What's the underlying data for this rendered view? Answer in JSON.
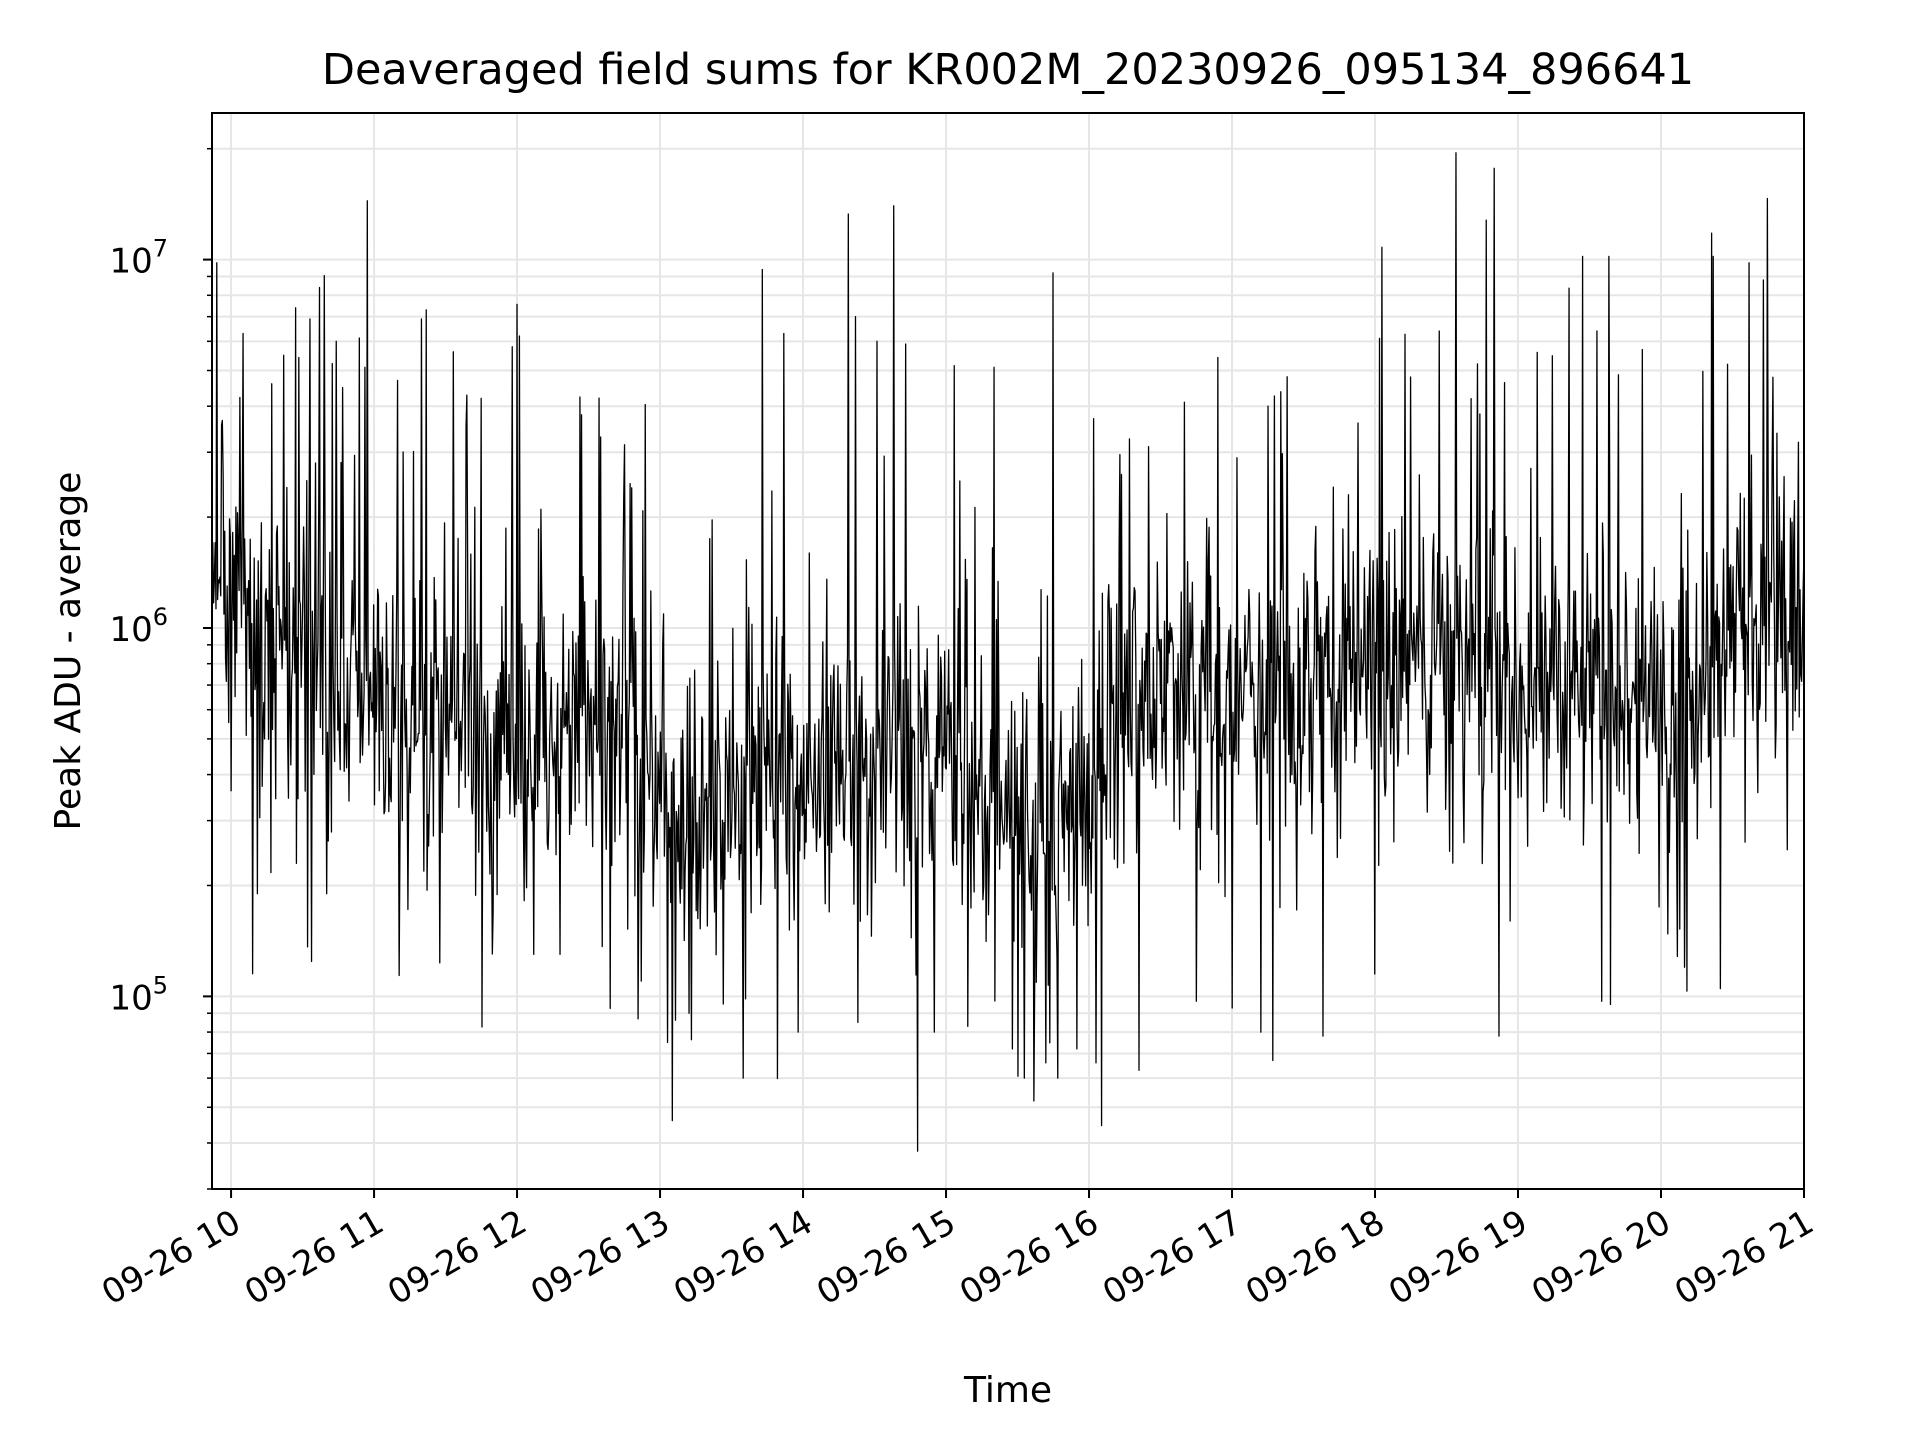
{
  "chart_data": {
    "type": "line",
    "title": "Deaveraged field sums for KR002M_20230926_095134_896641",
    "xlabel": "Time",
    "ylabel": "Peak ADU - average",
    "x_tick_labels": [
      "09-26 10",
      "09-26 11",
      "09-26 12",
      "09-26 13",
      "09-26 14",
      "09-26 15",
      "09-26 16",
      "09-26 17",
      "09-26 18",
      "09-26 19",
      "09-26 20",
      "09-26 21"
    ],
    "y_tick_labels": [
      {
        "base": "10",
        "exp": "5"
      },
      {
        "base": "10",
        "exp": "6"
      },
      {
        "base": "10",
        "exp": "7"
      }
    ],
    "y_scale": "log",
    "x_range": [
      "2023-09-26 09:52",
      "2023-09-26 21:00"
    ],
    "y_range": [
      30000,
      25000000
    ],
    "grid": true,
    "line_color": "#000000",
    "grid_color": "#e6e6e6",
    "series": [
      {
        "name": "",
        "start_time": "2023-09-26 09:52",
        "anchors": [
          [
            "09:52",
            1500000
          ],
          [
            "10:15",
            900000
          ],
          [
            "10:40",
            750000
          ],
          [
            "11:00",
            650000
          ],
          [
            "11:30",
            500000
          ],
          [
            "11:50",
            450000
          ],
          [
            "12:10",
            500000
          ],
          [
            "12:30",
            650000
          ],
          [
            "12:50",
            450000
          ],
          [
            "13:05",
            300000
          ],
          [
            "13:30",
            330000
          ],
          [
            "13:45",
            380000
          ],
          [
            "14:00",
            450000
          ],
          [
            "14:20",
            450000
          ],
          [
            "14:40",
            500000
          ],
          [
            "15:00",
            450000
          ],
          [
            "15:20",
            330000
          ],
          [
            "15:40",
            280000
          ],
          [
            "16:00",
            400000
          ],
          [
            "16:15",
            650000
          ],
          [
            "16:40",
            650000
          ],
          [
            "17:00",
            600000
          ],
          [
            "17:30",
            700000
          ],
          [
            "18:00",
            850000
          ],
          [
            "18:30",
            800000
          ],
          [
            "19:00",
            750000
          ],
          [
            "19:30",
            700000
          ],
          [
            "20:00",
            600000
          ],
          [
            "20:15",
            550000
          ],
          [
            "20:30",
            1100000
          ],
          [
            "21:00",
            1000000
          ]
        ],
        "peaks": [
          [
            "09:54",
            9800000
          ],
          [
            "10:05",
            6300000
          ],
          [
            "10:17",
            4600000
          ],
          [
            "10:22",
            5500000
          ],
          [
            "10:27",
            7400000
          ],
          [
            "10:33",
            6900000
          ],
          [
            "10:37",
            8400000
          ],
          [
            "10:44",
            6000000
          ],
          [
            "10:56",
            5100000
          ],
          [
            "11:10",
            4700000
          ],
          [
            "11:20",
            6900000
          ],
          [
            "11:22",
            7300000
          ],
          [
            "11:45",
            4200000
          ],
          [
            "11:58",
            5800000
          ],
          [
            "12:01",
            6200000
          ],
          [
            "12:35",
            3300000
          ],
          [
            "12:48",
            2400000
          ],
          [
            "13:12",
            6400000
          ],
          [
            "13:43",
            9400000
          ],
          [
            "13:52",
            6300000
          ],
          [
            "14:19",
            13300000
          ],
          [
            "14:22",
            7000000
          ],
          [
            "14:31",
            6000000
          ],
          [
            "14:38",
            14000000
          ],
          [
            "14:43",
            5900000
          ],
          [
            "15:20",
            5100000
          ],
          [
            "15:45",
            9200000
          ],
          [
            "16:02",
            3700000
          ],
          [
            "16:40",
            4100000
          ],
          [
            "17:00",
            6500000
          ],
          [
            "17:15",
            4000000
          ],
          [
            "17:38",
            4100000
          ],
          [
            "17:53",
            3600000
          ],
          [
            "18:00",
            11000000
          ],
          [
            "18:03",
            10800000
          ],
          [
            "18:15",
            4800000
          ],
          [
            "18:27",
            6400000
          ],
          [
            "18:34",
            19500000
          ],
          [
            "18:50",
            17700000
          ],
          [
            "19:08",
            5600000
          ],
          [
            "19:27",
            10200000
          ],
          [
            "19:33",
            6400000
          ],
          [
            "19:38",
            10200000
          ],
          [
            "19:52",
            5700000
          ],
          [
            "20:22",
            10200000
          ],
          [
            "20:28",
            5200000
          ],
          [
            "20:37",
            9800000
          ],
          [
            "20:43",
            8800000
          ],
          [
            "20:53",
            4000000
          ]
        ],
        "troughs": [
          [
            "10:11",
            190000
          ],
          [
            "10:40",
            190000
          ],
          [
            "11:12",
            300000
          ],
          [
            "11:50",
            170000
          ],
          [
            "12:07",
            130000
          ],
          [
            "12:18",
            130000
          ],
          [
            "12:52",
            110000
          ],
          [
            "13:03",
            75000
          ],
          [
            "13:05",
            46000
          ],
          [
            "13:12",
            90000
          ],
          [
            "13:35",
            60000
          ],
          [
            "13:58",
            80000
          ],
          [
            "14:23",
            85000
          ],
          [
            "14:48",
            38000
          ],
          [
            "14:55",
            80000
          ],
          [
            "15:28",
            72000
          ],
          [
            "15:33",
            60000
          ],
          [
            "15:37",
            52000
          ],
          [
            "15:42",
            66000
          ],
          [
            "15:47",
            60000
          ],
          [
            "15:55",
            72000
          ],
          [
            "16:03",
            66000
          ],
          [
            "16:21",
            63000
          ],
          [
            "16:45",
            97000
          ],
          [
            "17:00",
            93000
          ],
          [
            "17:12",
            80000
          ],
          [
            "17:17",
            67000
          ],
          [
            "17:38",
            78000
          ],
          [
            "18:00",
            115000
          ],
          [
            "18:52",
            78000
          ],
          [
            "19:35",
            97000
          ],
          [
            "20:10",
            120000
          ],
          [
            "20:25",
            105000
          ],
          [
            "20:53",
            250000
          ]
        ]
      }
    ]
  }
}
